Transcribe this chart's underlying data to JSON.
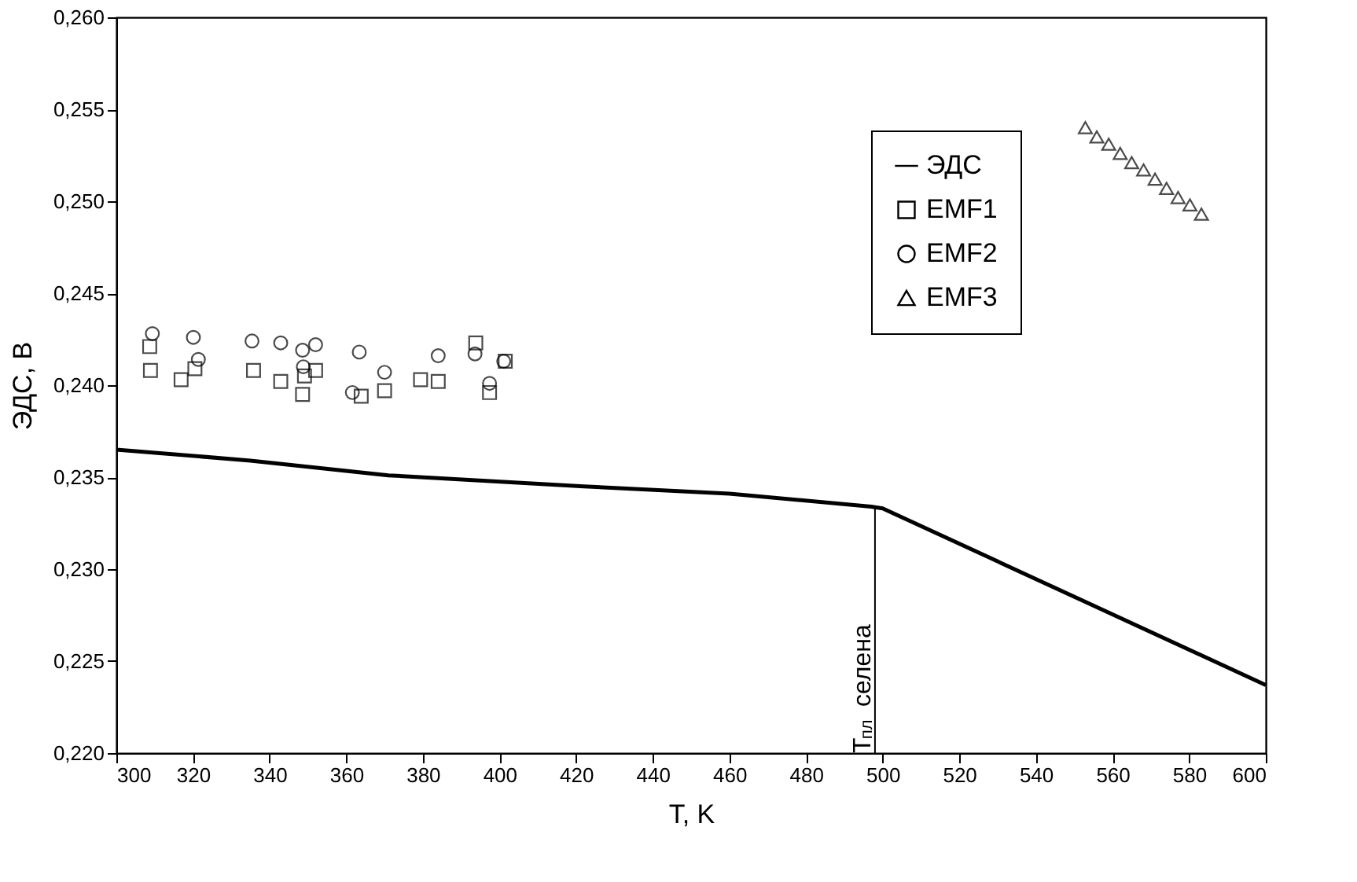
{
  "chart_data": {
    "type": "scatter",
    "xlabel": "T, K",
    "ylabel": "ЭДС, В",
    "xlim": [
      300,
      600
    ],
    "xticks": [
      300,
      320,
      340,
      360,
      380,
      400,
      420,
      440,
      460,
      480,
      500,
      520,
      540,
      560,
      580,
      600
    ],
    "ylim": [
      0.22,
      0.26
    ],
    "yticks": [
      {
        "value": 0.22,
        "label": "0,220"
      },
      {
        "value": 0.225,
        "label": "0,225"
      },
      {
        "value": 0.23,
        "label": "0,230"
      },
      {
        "value": 0.235,
        "label": "0,235"
      },
      {
        "value": 0.24,
        "label": "0,240"
      },
      {
        "value": 0.245,
        "label": "0,245"
      },
      {
        "value": 0.25,
        "label": "0,250"
      },
      {
        "value": 0.255,
        "label": "0,255"
      },
      {
        "value": 0.26,
        "label": "0,260"
      }
    ],
    "grid": false,
    "legend": "top right",
    "series": [
      {
        "name": "ЭДС",
        "type": "line",
        "color": "#000000",
        "line_style": "solid",
        "x": [
          300,
          335,
          371,
          422,
          460,
          497,
          500,
          600
        ],
        "values": [
          0.2365,
          0.2359,
          0.2351,
          0.2345,
          0.2341,
          0.2334,
          0.2333,
          0.2237
        ]
      },
      {
        "name": "EMF1",
        "marker": "square",
        "color": "#000000",
        "x": [
          308.7,
          308.9,
          316.9,
          320.5,
          335.8,
          342.9,
          348.6,
          349.1,
          352,
          363.9,
          370,
          379.4,
          384,
          393.8,
          397.4,
          401.5
        ],
        "values": [
          0.2421,
          0.2408,
          0.2403,
          0.2409,
          0.2408,
          0.2402,
          0.2395,
          0.2405,
          0.2408,
          0.2394,
          0.2397,
          0.2403,
          0.2402,
          0.2423,
          0.2396,
          0.2413
        ]
      },
      {
        "name": "EMF2",
        "marker": "circle",
        "color": "#000000",
        "x": [
          309.4,
          320.1,
          321.4,
          335.4,
          342.9,
          348.6,
          348.8,
          352,
          361.6,
          363.4,
          370,
          384,
          393.6,
          397.4,
          401.1
        ],
        "values": [
          0.2428,
          0.2426,
          0.2414,
          0.2424,
          0.2423,
          0.2419,
          0.241,
          0.2422,
          0.2396,
          0.2418,
          0.2407,
          0.2416,
          0.2417,
          0.2401,
          0.2413
        ]
      },
      {
        "name": "EMF3",
        "marker": "triangle",
        "color": "#000000",
        "x": [
          552.9,
          555.9,
          559,
          562,
          565,
          568.1,
          571.1,
          574.1,
          577.1,
          580.2,
          583.2
        ],
        "values": [
          0.254,
          0.2535,
          0.2531,
          0.2526,
          0.2521,
          0.2517,
          0.2512,
          0.2507,
          0.2502,
          0.2498,
          0.2493
        ]
      }
    ],
    "ref_lines": [
      {
        "axis": "x",
        "value": 498,
        "label": "T$_{пл}$ селена",
        "color": "#000000",
        "line_style": "solid"
      }
    ]
  }
}
